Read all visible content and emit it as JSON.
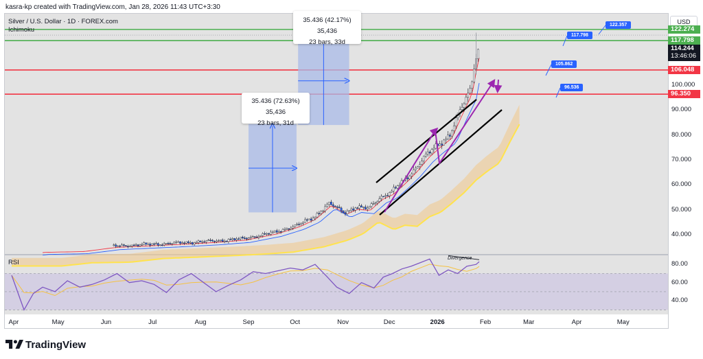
{
  "header": {
    "attribution": "kasra-kp created with TradingView.com, Jan 28, 2026 11:43 UTC+3:30"
  },
  "chart_data": {
    "type": "candlestick",
    "title": "Silver / U.S. Dollar · 1D · FOREX.com",
    "indicator": "Ichimoku",
    "currency": "USD",
    "y_range": [
      32,
      128
    ],
    "y_ticks": [
      {
        "value": 100,
        "label": "100.000"
      },
      {
        "value": 90,
        "label": "90.000"
      },
      {
        "value": 80,
        "label": "80.000"
      },
      {
        "value": 70,
        "label": "70.000"
      },
      {
        "value": 60,
        "label": "60.000"
      },
      {
        "value": 50,
        "label": "50.000"
      },
      {
        "value": 40,
        "label": "40.000"
      }
    ],
    "x_ticks": [
      {
        "label": "Apr",
        "day": 0
      },
      {
        "label": "May",
        "day": 30
      },
      {
        "label": "Jun",
        "day": 61
      },
      {
        "label": "Jul",
        "day": 91
      },
      {
        "label": "Aug",
        "day": 122
      },
      {
        "label": "Sep",
        "day": 153
      },
      {
        "label": "Oct",
        "day": 183
      },
      {
        "label": "Nov",
        "day": 214
      },
      {
        "label": "Dec",
        "day": 244
      },
      {
        "label": "2026",
        "day": 275,
        "bold": true
      },
      {
        "label": "Feb",
        "day": 306
      },
      {
        "label": "Mar",
        "day": 334
      },
      {
        "label": "Apr",
        "day": 365
      },
      {
        "label": "May",
        "day": 395
      }
    ],
    "price_levels": [
      {
        "value": 122.274,
        "label": "122.274",
        "color": "#4caf50"
      },
      {
        "value": 117.798,
        "label": "117.798",
        "color": "#4caf50"
      },
      {
        "value": 106.048,
        "label": "106.048",
        "color": "#f23645"
      },
      {
        "value": 96.35,
        "label": "96.350",
        "color": "#f23645"
      }
    ],
    "current_price": {
      "value": 114.244,
      "label": "114.244",
      "countdown": "13:46:06"
    },
    "target_callouts": [
      "122.357",
      "117.798",
      "105.862",
      "96.536"
    ],
    "measurements": [
      {
        "line1": "35.436 (72.63%) 35,436",
        "line2": "23 bars, 31d",
        "from_day": 153,
        "to_day": 184,
        "low": 49,
        "high": 84.4
      },
      {
        "line1": "35.436 (42.17%) 35,436",
        "line2": "23 bars, 33d",
        "from_day": 185,
        "to_day": 218,
        "low": 84,
        "high": 119.4
      }
    ],
    "price_series": {
      "days": [
        0,
        20,
        45,
        66,
        90,
        110,
        130,
        150,
        170,
        185,
        195,
        205,
        215,
        222,
        230,
        238,
        245,
        252,
        260,
        268,
        275,
        283,
        290,
        296,
        300,
        302
      ],
      "close": [
        32,
        33.5,
        33.8,
        35.5,
        36.2,
        36.8,
        37.5,
        38.5,
        41,
        44,
        47,
        52.5,
        49,
        51,
        50.5,
        55,
        57,
        61,
        66,
        72,
        76,
        80,
        90,
        98,
        112,
        114.2
      ]
    },
    "rsi": {
      "label": "RSI",
      "levels": [
        80,
        60,
        40
      ],
      "range": [
        25,
        90
      ],
      "days": [
        0,
        8,
        14,
        20,
        28,
        36,
        44,
        52,
        60,
        68,
        76,
        84,
        92,
        100,
        108,
        116,
        124,
        132,
        140,
        148,
        156,
        164,
        172,
        180,
        188,
        196,
        204,
        210,
        218,
        226,
        234,
        240,
        246,
        252,
        258,
        264,
        270,
        276,
        282,
        288,
        294,
        300,
        302
      ],
      "values": [
        68,
        30,
        48,
        55,
        50,
        62,
        55,
        58,
        63,
        70,
        60,
        62,
        58,
        49,
        63,
        70,
        60,
        50,
        57,
        63,
        72,
        70,
        73,
        76,
        74,
        80,
        66,
        55,
        48,
        60,
        54,
        66,
        70,
        75,
        78,
        82,
        86,
        68,
        74,
        70,
        78,
        80,
        83
      ],
      "annotation": "Divergence"
    }
  },
  "footer": {
    "brand": "TradingView"
  }
}
